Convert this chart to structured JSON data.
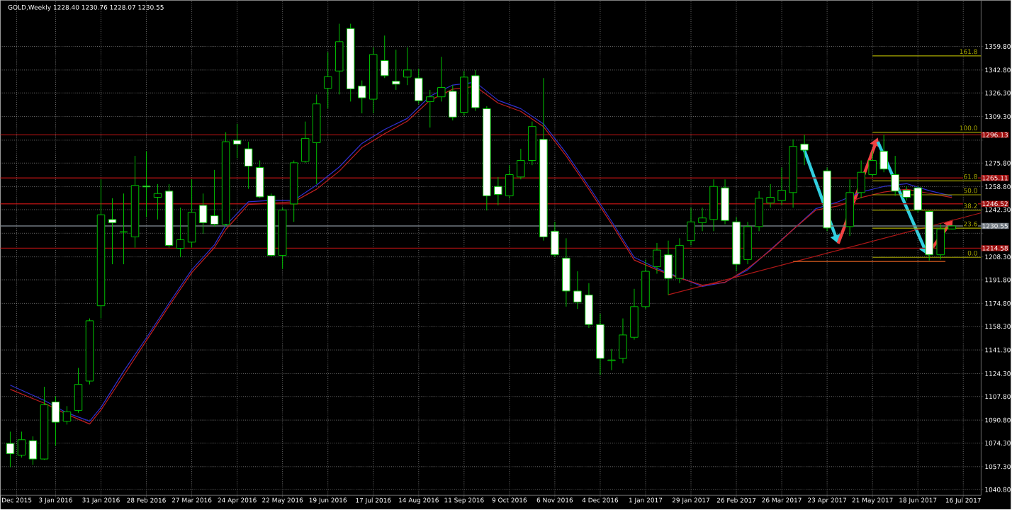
{
  "chart_data": {
    "type": "candlestick",
    "title": "GOLD,Weekly 1228.40 1230.76 1228.07 1230.55",
    "x": [
      "2015-12-06",
      "2015-12-13",
      "2015-12-20",
      "2015-12-27",
      "2016-01-03",
      "2016-01-10",
      "2016-01-17",
      "2016-01-24",
      "2016-01-31",
      "2016-02-07",
      "2016-02-14",
      "2016-02-21",
      "2016-02-28",
      "2016-03-06",
      "2016-03-13",
      "2016-03-20",
      "2016-03-27",
      "2016-04-03",
      "2016-04-10",
      "2016-04-17",
      "2016-04-24",
      "2016-05-01",
      "2016-05-08",
      "2016-05-15",
      "2016-05-22",
      "2016-05-29",
      "2016-06-05",
      "2016-06-12",
      "2016-06-19",
      "2016-06-26",
      "2016-07-03",
      "2016-07-10",
      "2016-07-17",
      "2016-07-24",
      "2016-07-31",
      "2016-08-07",
      "2016-08-14",
      "2016-08-21",
      "2016-08-28",
      "2016-09-04",
      "2016-09-11",
      "2016-09-18",
      "2016-09-25",
      "2016-10-02",
      "2016-10-09",
      "2016-10-16",
      "2016-10-23",
      "2016-10-30",
      "2016-11-06",
      "2016-11-13",
      "2016-11-20",
      "2016-11-27",
      "2016-12-04",
      "2016-12-11",
      "2016-12-18",
      "2016-12-25",
      "2017-01-01",
      "2017-01-08",
      "2017-01-15",
      "2017-01-22",
      "2017-01-29",
      "2017-02-05",
      "2017-02-12",
      "2017-02-19",
      "2017-02-26",
      "2017-03-05",
      "2017-03-12",
      "2017-03-19",
      "2017-03-26",
      "2017-04-02",
      "2017-04-09",
      "2017-04-23",
      "2017-05-07",
      "2017-05-14",
      "2017-05-21",
      "2017-05-28",
      "2017-06-04",
      "2017-06-11",
      "2017-06-18",
      "2017-06-25",
      "2017-07-02",
      "2017-07-09"
    ],
    "ohlc": [
      [
        1074.0,
        1082.5,
        1056.9,
        1066.6
      ],
      [
        1065.6,
        1082.5,
        1063.9,
        1076.7
      ],
      [
        1076.0,
        1079.1,
        1058.6,
        1062.8
      ],
      [
        1062.8,
        1114.8,
        1062.2,
        1101.8
      ],
      [
        1103.9,
        1108.0,
        1072.4,
        1089.3
      ],
      [
        1090.0,
        1100.9,
        1087.6,
        1096.8
      ],
      [
        1097.8,
        1128.4,
        1096.1,
        1116.5
      ],
      [
        1118.9,
        1164.0,
        1116.5,
        1162.3
      ],
      [
        1173.1,
        1264.1,
        1164.0,
        1238.6
      ],
      [
        1235.2,
        1250.5,
        1203.0,
        1232.9
      ],
      [
        1226.1,
        1253.9,
        1203.0,
        1226.4
      ],
      [
        1222.7,
        1281.0,
        1214.9,
        1259.7
      ],
      [
        1259.3,
        1284.4,
        1236.9,
        1258.7
      ],
      [
        1251.2,
        1260.7,
        1235.2,
        1253.9
      ],
      [
        1255.6,
        1260.7,
        1214.9,
        1216.6
      ],
      [
        1214.5,
        1243.7,
        1208.1,
        1220.6
      ],
      [
        1218.9,
        1264.1,
        1214.9,
        1240.3
      ],
      [
        1245.4,
        1253.9,
        1225.1,
        1232.9
      ],
      [
        1237.9,
        1270.9,
        1230.1,
        1231.8
      ],
      [
        1231.8,
        1298.0,
        1230.1,
        1291.2
      ],
      [
        1292.2,
        1304.1,
        1279.3,
        1289.5
      ],
      [
        1286.1,
        1291.2,
        1257.3,
        1273.6
      ],
      [
        1272.6,
        1277.7,
        1250.5,
        1251.5
      ],
      [
        1252.2,
        1253.9,
        1208.1,
        1209.4
      ],
      [
        1209.4,
        1243.7,
        1199.6,
        1242.0
      ],
      [
        1246.4,
        1277.7,
        1233.5,
        1276.0
      ],
      [
        1277.0,
        1305.7,
        1276.0,
        1293.6
      ],
      [
        1290.5,
        1325.2,
        1260.7,
        1318.4
      ],
      [
        1329.6,
        1355.7,
        1315.0,
        1338.0
      ],
      [
        1342.1,
        1376.1,
        1325.2,
        1363.2
      ],
      [
        1372.7,
        1376.1,
        1320.1,
        1329.2
      ],
      [
        1331.3,
        1335.3,
        1311.6,
        1322.8
      ],
      [
        1321.8,
        1359.1,
        1311.6,
        1354.0
      ],
      [
        1349.6,
        1367.6,
        1337.0,
        1338.7
      ],
      [
        1334.7,
        1357.4,
        1328.5,
        1332.6
      ],
      [
        1337.7,
        1359.1,
        1331.9,
        1342.8
      ],
      [
        1337.0,
        1343.8,
        1318.4,
        1320.7
      ],
      [
        1320.1,
        1328.5,
        1301.4,
        1323.5
      ],
      [
        1323.5,
        1352.3,
        1320.1,
        1330.2
      ],
      [
        1327.5,
        1331.9,
        1306.5,
        1308.9
      ],
      [
        1312.3,
        1342.1,
        1309.9,
        1337.7
      ],
      [
        1338.7,
        1342.8,
        1313.3,
        1315.7
      ],
      [
        1315.0,
        1316.7,
        1241.7,
        1252.2
      ],
      [
        1259.0,
        1265.8,
        1245.4,
        1253.2
      ],
      [
        1252.2,
        1274.3,
        1250.5,
        1267.5
      ],
      [
        1265.8,
        1286.1,
        1264.1,
        1277.7
      ],
      [
        1277.7,
        1305.7,
        1274.3,
        1302.1
      ],
      [
        1292.9,
        1337.0,
        1220.0,
        1222.7
      ],
      [
        1226.8,
        1233.5,
        1208.1,
        1209.8
      ],
      [
        1207.4,
        1221.7,
        1172.5,
        1183.7
      ],
      [
        1183.7,
        1197.9,
        1170.8,
        1175.8
      ],
      [
        1180.9,
        1189.4,
        1157.2,
        1159.6
      ],
      [
        1159.6,
        1167.4,
        1123.3,
        1135.2
      ],
      [
        1133.6,
        1142.0,
        1126.8,
        1134.1
      ],
      [
        1135.2,
        1164.0,
        1131.7,
        1152.1
      ],
      [
        1150.4,
        1185.3,
        1148.7,
        1172.5
      ],
      [
        1172.5,
        1206.4,
        1170.8,
        1197.9
      ],
      [
        1201.3,
        1218.3,
        1196.2,
        1213.2
      ],
      [
        1209.8,
        1220.0,
        1180.9,
        1192.8
      ],
      [
        1192.8,
        1221.7,
        1189.4,
        1216.6
      ],
      [
        1220.0,
        1243.7,
        1216.6,
        1233.5
      ],
      [
        1232.9,
        1243.7,
        1226.8,
        1236.3
      ],
      [
        1235.2,
        1264.1,
        1226.8,
        1259.0
      ],
      [
        1258.0,
        1264.1,
        1231.8,
        1234.5
      ],
      [
        1233.5,
        1236.9,
        1197.9,
        1203.0
      ],
      [
        1206.4,
        1233.5,
        1203.0,
        1230.1
      ],
      [
        1230.1,
        1255.6,
        1226.8,
        1250.5
      ],
      [
        1247.1,
        1260.7,
        1243.7,
        1251.2
      ],
      [
        1248.8,
        1272.6,
        1245.4,
        1256.3
      ],
      [
        1254.6,
        1292.9,
        1243.7,
        1287.8
      ],
      [
        1289.5,
        1296.3,
        1274.3,
        1285.1
      ],
      [
        1270.2,
        1272.6,
        1226.8,
        1229.1
      ],
      [
        1230.1,
        1264.1,
        1223.4,
        1254.6
      ],
      [
        1254.6,
        1277.7,
        1250.5,
        1269.2
      ],
      [
        1267.5,
        1284.4,
        1265.8,
        1277.7
      ],
      [
        1284.4,
        1296.3,
        1269.2,
        1271.5
      ],
      [
        1267.5,
        1281.0,
        1252.2,
        1255.6
      ],
      [
        1256.3,
        1259.0,
        1248.8,
        1251.2
      ],
      [
        1258.0,
        1259.0,
        1240.3,
        1242.0
      ],
      [
        1241.0,
        1242.0,
        1205.7,
        1209.8
      ],
      [
        1209.8,
        1231.8,
        1206.4,
        1228.4
      ],
      [
        1228.4,
        1230.76,
        1228.07,
        1230.55
      ]
    ],
    "xlim": [
      "2015-11-30",
      "2017-07-27"
    ],
    "ylim": [
      1036.7,
      1393.0
    ],
    "xticks": [
      {
        "value": "2015-12-10",
        "label": "Dec 2015"
      },
      {
        "value": "2016-01-03",
        "label": "3 Jan 2016"
      },
      {
        "value": "2016-01-31",
        "label": "31 Jan 2016"
      },
      {
        "value": "2016-02-28",
        "label": "28 Feb 2016"
      },
      {
        "value": "2016-03-27",
        "label": "27 Mar 2016"
      },
      {
        "value": "2016-04-24",
        "label": "24 Apr 2016"
      },
      {
        "value": "2016-05-22",
        "label": "22 May 2016"
      },
      {
        "value": "2016-06-19",
        "label": "19 Jun 2016"
      },
      {
        "value": "2016-07-17",
        "label": "17 Jul 2016"
      },
      {
        "value": "2016-08-14",
        "label": "14 Aug 2016"
      },
      {
        "value": "2016-09-11",
        "label": "11 Sep 2016"
      },
      {
        "value": "2016-10-09",
        "label": "9 Oct 2016"
      },
      {
        "value": "2016-11-06",
        "label": "6 Nov 2016"
      },
      {
        "value": "2016-12-04",
        "label": "4 Dec 2016"
      },
      {
        "value": "2017-01-01",
        "label": "1 Jan 2017"
      },
      {
        "value": "2017-01-29",
        "label": "29 Jan 2017"
      },
      {
        "value": "2017-02-26",
        "label": "26 Feb 2017"
      },
      {
        "value": "2017-03-26",
        "label": "26 Mar 2017"
      },
      {
        "value": "2017-04-23",
        "label": "23 Apr 2017"
      },
      {
        "value": "2017-05-21",
        "label": "21 May 2017"
      },
      {
        "value": "2017-06-18",
        "label": "18 Jun 2017"
      },
      {
        "value": "2017-07-16",
        "label": "16 Jul 2017"
      }
    ],
    "yticks": [
      {
        "value": 1040.8,
        "label": "1040.80"
      },
      {
        "value": 1057.3,
        "label": "1057.30"
      },
      {
        "value": 1074.3,
        "label": "1074.30"
      },
      {
        "value": 1090.8,
        "label": "1090.80"
      },
      {
        "value": 1107.8,
        "label": "1107.80"
      },
      {
        "value": 1124.3,
        "label": "1124.30"
      },
      {
        "value": 1141.3,
        "label": "1141.30"
      },
      {
        "value": 1158.3,
        "label": "1158.30"
      },
      {
        "value": 1174.8,
        "label": "1174.80"
      },
      {
        "value": 1191.8,
        "label": "1191.80"
      },
      {
        "value": 1208.3,
        "label": "1208.30"
      },
      {
        "value": 1225.3,
        "label": null
      },
      {
        "value": 1242.3,
        "label": "1242.30"
      },
      {
        "value": 1258.8,
        "label": "1258.80"
      },
      {
        "value": 1275.8,
        "label": "1275.80"
      },
      {
        "value": 1292.3,
        "label": null
      },
      {
        "value": 1309.3,
        "label": "1309.30"
      },
      {
        "value": 1326.3,
        "label": "1326.30"
      },
      {
        "value": 1342.8,
        "label": "1342.80"
      },
      {
        "value": 1359.8,
        "label": "1359.80"
      }
    ],
    "grid": true,
    "series": [
      {
        "type": "line",
        "color": "#3030d0",
        "x": [
          "2015-12-06",
          "2015-12-27",
          "2016-01-10",
          "2016-01-24",
          "2016-01-31",
          "2016-02-14",
          "2016-02-28",
          "2016-03-13",
          "2016-03-27",
          "2016-04-10",
          "2016-04-17",
          "2016-05-01",
          "2016-05-15",
          "2016-05-29",
          "2016-06-12",
          "2016-06-26",
          "2016-07-10",
          "2016-07-24",
          "2016-08-07",
          "2016-08-21",
          "2016-09-04",
          "2016-09-18",
          "2016-10-02",
          "2016-10-16",
          "2016-10-30",
          "2016-11-13",
          "2016-11-27",
          "2016-12-11",
          "2016-12-25",
          "2017-01-08",
          "2017-01-22",
          "2017-02-05",
          "2017-02-19",
          "2017-03-05",
          "2017-03-19",
          "2017-04-02",
          "2017-04-16",
          "2017-04-30",
          "2017-05-14",
          "2017-05-28",
          "2017-06-11",
          "2017-06-25",
          "2017-07-09"
        ],
        "values": [
          1116,
          1105,
          1096,
          1090,
          1100,
          1126,
          1150,
          1175,
          1199,
          1217,
          1231,
          1248,
          1249,
          1249,
          1260,
          1273,
          1290,
          1300,
          1308,
          1324,
          1332,
          1334,
          1321,
          1315,
          1304,
          1283,
          1259,
          1234,
          1208,
          1200,
          null,
          1187,
          1190,
          1199,
          null,
          1228,
          1243,
          1248,
          1255,
          1259,
          1261,
          1256,
          1252
        ]
      },
      {
        "type": "line",
        "color": "#c02020",
        "x": [
          "2015-12-06",
          "2015-12-27",
          "2016-01-10",
          "2016-01-24",
          "2016-01-31",
          "2016-02-14",
          "2016-02-28",
          "2016-03-13",
          "2016-03-27",
          "2016-04-10",
          "2016-04-17",
          "2016-05-01",
          "2016-05-15",
          "2016-05-29",
          "2016-06-12",
          "2016-06-26",
          "2016-07-10",
          "2016-07-24",
          "2016-08-07",
          "2016-08-21",
          "2016-09-04",
          "2016-09-18",
          "2016-10-02",
          "2016-10-16",
          "2016-10-30",
          "2016-11-13",
          "2016-11-27",
          "2016-12-11",
          "2016-12-25",
          "2017-01-08",
          "2017-01-22",
          "2017-02-05",
          "2017-02-19",
          "2017-03-05",
          "2017-03-19",
          "2017-04-02",
          "2017-04-16",
          "2017-04-30",
          "2017-05-14",
          "2017-05-28",
          "2017-06-11",
          "2017-06-25",
          "2017-07-09"
        ],
        "values": [
          1113,
          1103,
          1095,
          1088,
          1098,
          1123,
          1148,
          1173,
          1197,
          1215,
          1228,
          1246,
          1247,
          1248,
          1257,
          1270,
          1287,
          1297,
          1306,
          1321,
          1329,
          1331,
          1319,
          1313,
          1302,
          1281,
          1257,
          1232,
          1206,
          1199,
          1193,
          1188,
          1190,
          1200,
          1213,
          1228,
          1242,
          1245,
          1251,
          1255,
          1257,
          1254,
          1251
        ]
      },
      {
        "type": "line",
        "color": "#b01818",
        "x": [
          "2017-01-15",
          "2017-07-27"
        ],
        "values": [
          1181,
          1240
        ]
      },
      {
        "type": "line",
        "color": "#e06020",
        "x": [
          "2017-04-02",
          "2017-07-05"
        ],
        "values": [
          1205,
          1205
        ]
      },
      {
        "type": "line",
        "name": "161.8",
        "color": "#a8a800",
        "x": [
          "2017-05-21",
          "2017-07-27"
        ],
        "values": [
          1353,
          1353
        ]
      },
      {
        "type": "line",
        "name": "100.0",
        "color": "#a8a800",
        "x": [
          "2017-05-21",
          "2017-07-27"
        ],
        "values": [
          1298,
          1298
        ]
      },
      {
        "type": "line",
        "name": "61.8",
        "color": "#a8a800",
        "x": [
          "2017-05-21",
          "2017-07-27"
        ],
        "values": [
          1263,
          1263
        ]
      },
      {
        "type": "line",
        "name": "50.0",
        "color": "#a8a800",
        "x": [
          "2017-05-21",
          "2017-07-27"
        ],
        "values": [
          1253,
          1253
        ]
      },
      {
        "type": "line",
        "name": "38.2",
        "color": "#a8a800",
        "x": [
          "2017-05-21",
          "2017-07-27"
        ],
        "values": [
          1242,
          1242
        ]
      },
      {
        "type": "line",
        "name": "23.6",
        "color": "#a8a800",
        "x": [
          "2017-05-21",
          "2017-07-27"
        ],
        "values": [
          1229,
          1229
        ]
      },
      {
        "type": "line",
        "name": "0.0",
        "color": "#a8a800",
        "x": [
          "2017-05-21",
          "2017-07-27"
        ],
        "values": [
          1208,
          1208
        ]
      }
    ],
    "ref_lines": [
      {
        "axis": "y",
        "value": 1296.13,
        "label": "1296.13",
        "color": "#a01010"
      },
      {
        "axis": "y",
        "value": 1265.11,
        "label": "1265.11",
        "color": "#a01010"
      },
      {
        "axis": "y",
        "value": 1246.52,
        "label": "1246.52",
        "color": "#a01010"
      },
      {
        "axis": "y",
        "value": 1230.55,
        "label": "1230.55",
        "color": "#707880"
      },
      {
        "axis": "y",
        "value": 1214.58,
        "label": "1214.58",
        "color": "#a01010"
      }
    ]
  }
}
